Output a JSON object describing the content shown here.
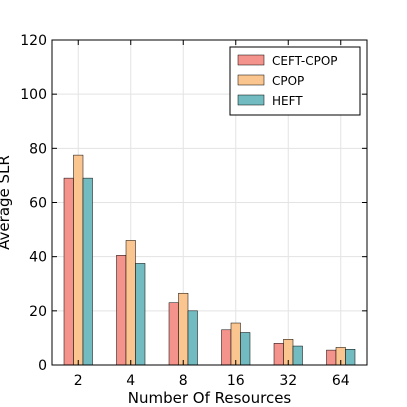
{
  "chart_data": {
    "type": "bar",
    "title": "",
    "xlabel": "Number Of Resources",
    "ylabel": "Average SLR",
    "categories": [
      "2",
      "4",
      "8",
      "16",
      "32",
      "64"
    ],
    "ylim": [
      0,
      120
    ],
    "yticks": [
      0,
      20,
      40,
      60,
      80,
      100,
      120
    ],
    "grid": true,
    "legend_position": "top-right",
    "series": [
      {
        "name": "CEFT-CPOP",
        "color": "#f4928c",
        "values": [
          69,
          40.5,
          23,
          13,
          8,
          5.5
        ]
      },
      {
        "name": "CPOP",
        "color": "#fbc58f",
        "values": [
          77.5,
          46,
          26.5,
          15.5,
          9.5,
          6.5
        ]
      },
      {
        "name": "HEFT",
        "color": "#72bcc1",
        "values": [
          69,
          37.5,
          20,
          12,
          7,
          5.8
        ]
      }
    ]
  }
}
